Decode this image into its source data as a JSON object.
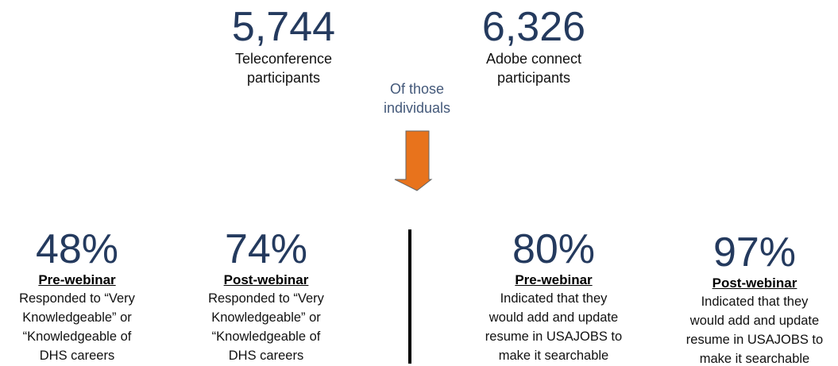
{
  "top": [
    {
      "number": "5,744",
      "label": [
        "Teleconference",
        "participants"
      ]
    },
    {
      "number": "6,326",
      "label": [
        "Adobe connect",
        "participants"
      ]
    }
  ],
  "connector": [
    "Of those",
    "individuals"
  ],
  "stats": [
    {
      "number": "48%",
      "heading": "Pre-webinar",
      "text": [
        "Responded to “Very",
        "Knowledgeable” or",
        "“Knowledgeable of",
        "DHS careers"
      ]
    },
    {
      "number": "74%",
      "heading": "Post-webinar",
      "text": [
        "Responded to “Very",
        "Knowledgeable” or",
        "“Knowledgeable of",
        "DHS careers"
      ]
    },
    {
      "number": "80%",
      "heading": "Pre-webinar",
      "text": [
        "Indicated that they",
        "would add and update",
        "resume in USAJOBS to",
        "make it searchable"
      ]
    },
    {
      "number": "97%",
      "heading": "Post-webinar",
      "text": [
        "Indicated that they",
        "would add and update",
        "resume in USAJOBS to",
        "make it searchable"
      ]
    }
  ]
}
